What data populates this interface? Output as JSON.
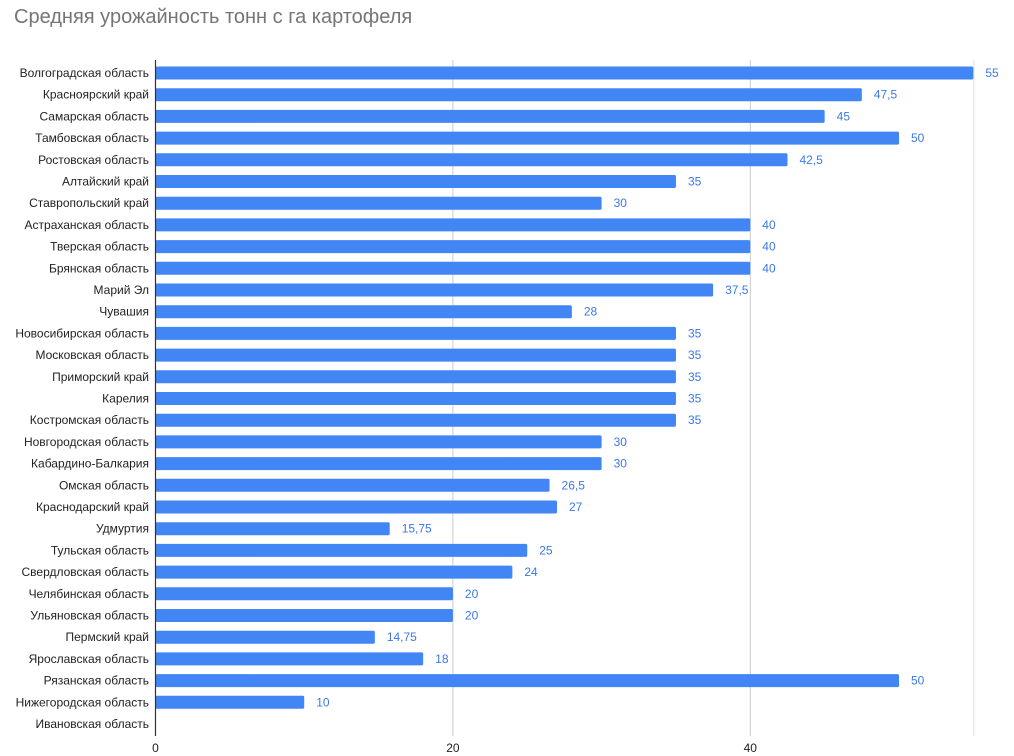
{
  "chart_data": {
    "type": "bar",
    "orientation": "horizontal",
    "title": "Средняя урожайность тонн с га картофеля",
    "xlabel": "",
    "ylabel": "",
    "xlim": [
      0,
      55
    ],
    "grid": true,
    "legend": "none",
    "bar_color": "#4285f4",
    "value_label_color": "#3b78e7",
    "x_ticks": [
      "0",
      "20",
      "40"
    ],
    "x_tick_values": [
      0,
      20,
      40
    ],
    "categories": [
      "Волгоградская область",
      "Красноярский край",
      "Самарская область",
      "Тамбовская область",
      "Ростовская область",
      "Алтайский край",
      "Ставропольский край",
      "Астраханская область",
      "Тверская область",
      "Брянская область",
      "Марий Эл",
      "Чувашия",
      "Новосибирская область",
      "Московская область",
      "Приморский край",
      "Карелия",
      "Костромская область",
      "Новгородская область",
      "Кабардино-Балкария",
      "Омская область",
      "Краснодарский край",
      "Удмуртия",
      "Тульская область",
      "Свердловская область",
      "Челябинская область",
      "Ульяновская область",
      "Пермский край",
      "Ярославская область",
      "Рязанская область",
      "Нижегородская область",
      "Ивановская область"
    ],
    "values": [
      55,
      47.5,
      45,
      50,
      42.5,
      35,
      30,
      40,
      40,
      40,
      37.5,
      28,
      35,
      35,
      35,
      35,
      35,
      30,
      30,
      26.5,
      27,
      15.75,
      25,
      24,
      20,
      20,
      14.75,
      18,
      50,
      10,
      null
    ],
    "value_labels": [
      "55",
      "47,5",
      "45",
      "50",
      "42,5",
      "35",
      "30",
      "40",
      "40",
      "40",
      "37,5",
      "28",
      "35",
      "35",
      "35",
      "35",
      "35",
      "30",
      "30",
      "26,5",
      "27",
      "15,75",
      "25",
      "24",
      "20",
      "20",
      "14,75",
      "18",
      "50",
      "10",
      ""
    ]
  }
}
